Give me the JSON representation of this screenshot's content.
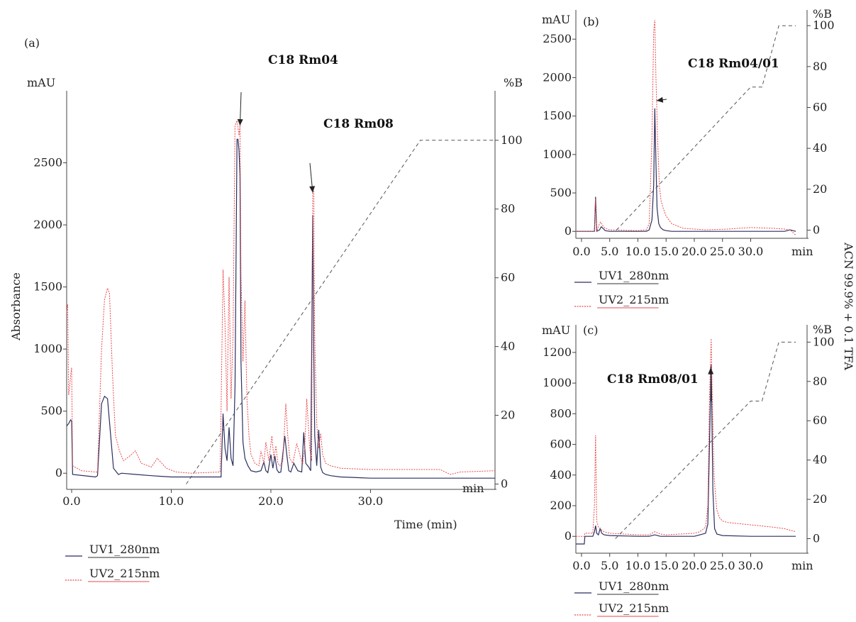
{
  "figure": {
    "right_axis_title": "ACN 99.9% + 0.1 TFA",
    "colors": {
      "uv1": "#2b2f5e",
      "uv2": "#e8494d",
      "gradient": "#555555",
      "axis": "#444444"
    }
  },
  "chart_data": [
    {
      "panel": "a",
      "type": "line",
      "panel_label": "(a)",
      "ylabel": "Absorbance",
      "xlabel": "Time (min)",
      "y_unit": "mAU",
      "y2_unit": "%B",
      "x_unit": "min",
      "xlim": [
        -0.5,
        42.5
      ],
      "ylim": [
        -130,
        3080
      ],
      "y2lim": [
        -1.55,
        114.4
      ],
      "x_ticks": [
        0,
        10,
        20,
        30
      ],
      "x_tick_labels": [
        "0.0",
        "10.0",
        "20.0",
        "30.0"
      ],
      "y_ticks": [
        0,
        500,
        1000,
        1500,
        2000,
        2500
      ],
      "y_tick_labels": [
        "0",
        "500",
        "1000",
        "1500",
        "2000",
        "2500"
      ],
      "y2_ticks": [
        0,
        20,
        40,
        60,
        80,
        100
      ],
      "y2_tick_labels": [
        "0",
        "20",
        "40",
        "60",
        "80",
        "100"
      ],
      "legend": [
        "UV1_280nm",
        "UV2_215nm"
      ],
      "annotations": [
        {
          "text": "C18 Rm04",
          "x": 16.9,
          "y": 2800
        },
        {
          "text": "C18 Rm08",
          "x": 24.2,
          "y": 2260
        }
      ],
      "series": [
        {
          "name": "UV1_280nm",
          "x": [
            -0.5,
            -0.3,
            -0.1,
            0,
            0.1,
            2.4,
            2.6,
            3.0,
            3.3,
            3.6,
            4.2,
            4.5,
            4.7,
            5,
            6.5,
            8,
            9,
            10,
            15,
            15.2,
            15.4,
            15.6,
            15.8,
            16.0,
            16.2,
            16.4,
            16.6,
            16.7,
            16.8,
            16.9,
            17.0,
            17.2,
            17.4,
            17.7,
            18,
            18.5,
            19,
            19.3,
            19.5,
            19.7,
            20,
            20.2,
            20.4,
            20.6,
            20.8,
            21,
            21.4,
            21.6,
            21.8,
            22,
            22.3,
            22.7,
            23.1,
            23.3,
            23.5,
            23.8,
            24,
            24.1,
            24.2,
            24.3,
            24.4,
            24.6,
            24.8,
            25,
            25.2,
            25.5,
            26,
            27,
            30,
            35,
            40,
            42.5
          ],
          "y": [
            380,
            400,
            430,
            420,
            -10,
            -30,
            -20,
            560,
            620,
            600,
            40,
            10,
            -10,
            0,
            -10,
            -20,
            -25,
            -30,
            -30,
            480,
            200,
            100,
            370,
            120,
            60,
            700,
            2690,
            2690,
            2600,
            2400,
            900,
            250,
            120,
            60,
            20,
            10,
            20,
            90,
            20,
            5,
            150,
            40,
            140,
            30,
            5,
            10,
            300,
            150,
            20,
            10,
            80,
            20,
            10,
            330,
            80,
            50,
            20,
            1000,
            2080,
            1000,
            300,
            60,
            350,
            50,
            5,
            -10,
            -20,
            -30,
            -40,
            -40,
            -40,
            -40
          ]
        },
        {
          "name": "UV2_215nm",
          "x": [
            -0.5,
            -0.4,
            -0.3,
            -0.2,
            -0.1,
            0,
            0.1,
            1,
            2.4,
            2.6,
            3.0,
            3.3,
            3.6,
            3.8,
            4.1,
            4.4,
            4.8,
            5.2,
            6,
            6.4,
            7,
            8,
            8.6,
            9.5,
            10.5,
            12,
            14.9,
            15.0,
            15.2,
            15.4,
            15.6,
            15.8,
            16.0,
            16.2,
            16.4,
            16.6,
            16.8,
            16.9,
            17.0,
            17.2,
            17.4,
            17.6,
            17.8,
            18,
            18.4,
            18.8,
            19,
            19.3,
            19.5,
            19.8,
            20.1,
            20.3,
            20.5,
            20.7,
            20.9,
            21.2,
            21.5,
            21.7,
            21.9,
            22.2,
            22.6,
            23,
            23.2,
            23.4,
            23.6,
            23.9,
            24.1,
            24.2,
            24.3,
            24.4,
            24.6,
            24.8,
            25,
            25.2,
            25.5,
            26,
            27,
            30,
            35,
            37,
            38,
            39,
            42.5
          ],
          "y": [
            1300,
            1360,
            630,
            700,
            790,
            850,
            60,
            20,
            10,
            10,
            1000,
            1400,
            1490,
            1450,
            800,
            300,
            180,
            100,
            150,
            180,
            80,
            50,
            120,
            40,
            10,
            0,
            10,
            500,
            1640,
            1200,
            500,
            1580,
            600,
            1100,
            2800,
            2840,
            2720,
            2800,
            1600,
            900,
            1390,
            600,
            300,
            150,
            80,
            60,
            180,
            80,
            250,
            100,
            300,
            120,
            220,
            80,
            60,
            100,
            560,
            300,
            120,
            80,
            240,
            120,
            80,
            200,
            600,
            200,
            100,
            2290,
            2280,
            1100,
            400,
            200,
            320,
            150,
            80,
            60,
            40,
            30,
            30,
            30,
            -10,
            10,
            20
          ]
        },
        {
          "name": "%B",
          "axis": "y2",
          "x": [
            11.5,
            35.0,
            42.5
          ],
          "y": [
            0,
            100,
            100
          ]
        }
      ]
    },
    {
      "panel": "b",
      "type": "line",
      "panel_label": "(b)",
      "y_unit": "mAU",
      "y2_unit": "%B",
      "x_unit": "min",
      "xlim": [
        -1,
        40
      ],
      "ylim": [
        -90,
        2880
      ],
      "y2lim": [
        -4,
        107.7
      ],
      "x_ticks": [
        0,
        5,
        10,
        15,
        20,
        25,
        30
      ],
      "x_tick_labels": [
        "0.0",
        "5.0",
        "10.0",
        "15.0",
        "20.0",
        "25.0",
        "30.0"
      ],
      "y_ticks": [
        0,
        500,
        1000,
        1500,
        2000,
        2500
      ],
      "y_tick_labels": [
        "0",
        "500",
        "1000",
        "1500",
        "2000",
        "2500"
      ],
      "y2_ticks": [
        0,
        20,
        40,
        60,
        80,
        100
      ],
      "y2_tick_labels": [
        "0",
        "20",
        "40",
        "60",
        "80",
        "100"
      ],
      "legend": [
        "UV1_280nm",
        "UV2_215nm"
      ],
      "annotations": [
        {
          "text": "C18 Rm04/01",
          "x": 13.3,
          "y": 1700
        }
      ],
      "series": [
        {
          "name": "UV1_280nm",
          "x": [
            -1,
            2.3,
            2.5,
            2.7,
            3.2,
            3.5,
            3.8,
            4.2,
            5,
            10,
            11.5,
            12,
            12.5,
            12.8,
            13,
            13.2,
            13.4,
            13.7,
            14,
            14.5,
            15,
            16,
            20,
            30,
            36,
            37,
            38
          ],
          "y": [
            0,
            0,
            450,
            0,
            20,
            60,
            40,
            10,
            0,
            0,
            0,
            20,
            150,
            600,
            1600,
            900,
            300,
            100,
            50,
            20,
            10,
            0,
            0,
            0,
            0,
            20,
            0
          ]
        },
        {
          "name": "UV2_215nm",
          "x": [
            -1,
            2.3,
            2.5,
            2.7,
            3.2,
            3.4,
            3.7,
            4.2,
            5,
            10,
            11.5,
            12,
            12.5,
            12.8,
            13,
            13.2,
            13.5,
            13.8,
            14.1,
            14.5,
            15,
            16,
            18,
            22,
            26,
            30,
            34,
            36,
            37,
            38
          ],
          "y": [
            0,
            0,
            420,
            0,
            100,
            120,
            80,
            40,
            20,
            10,
            20,
            100,
            1200,
            2600,
            2750,
            2000,
            1200,
            600,
            400,
            300,
            200,
            100,
            40,
            20,
            30,
            50,
            40,
            30,
            20,
            -50
          ]
        },
        {
          "name": "%B",
          "axis": "y2",
          "x": [
            6.2,
            30,
            32,
            35,
            38
          ],
          "y": [
            0,
            70,
            70,
            100,
            100
          ]
        }
      ]
    },
    {
      "panel": "c",
      "type": "line",
      "panel_label": "(c)",
      "y_unit": "mAU",
      "y2_unit": "%B",
      "x_unit": "min",
      "xlim": [
        -1,
        40
      ],
      "ylim": [
        -110,
        1380
      ],
      "y2lim": [
        -7.4,
        108.8
      ],
      "x_ticks": [
        0,
        5,
        10,
        15,
        20,
        25,
        30
      ],
      "x_tick_labels": [
        "0.0",
        "5.0",
        "10.0",
        "15.0",
        "20.0",
        "25.0",
        "30.0"
      ],
      "y_ticks": [
        0,
        200,
        400,
        600,
        800,
        1000,
        1200
      ],
      "y_tick_labels": [
        "0",
        "200",
        "400",
        "600",
        "800",
        "1000",
        "1200"
      ],
      "y2_ticks": [
        0,
        20,
        40,
        60,
        80,
        100
      ],
      "y2_tick_labels": [
        "0",
        "20",
        "40",
        "60",
        "80",
        "100"
      ],
      "legend": [
        "UV1_280nm",
        "UV2_215nm"
      ],
      "annotations": [
        {
          "text": "C18 Rm08/01",
          "x": 22.9,
          "y": 1100
        }
      ],
      "series": [
        {
          "name": "UV1_280nm",
          "x": [
            -1,
            0.5,
            0.6,
            2,
            2.3,
            2.5,
            2.7,
            3,
            3.3,
            3.6,
            4,
            5,
            10,
            12,
            13,
            14,
            15,
            20,
            21,
            22,
            22.4,
            22.7,
            23,
            23.3,
            23.6,
            24,
            25,
            30,
            35,
            38
          ],
          "y": [
            -50,
            -50,
            0,
            0,
            30,
            70,
            20,
            10,
            50,
            20,
            10,
            5,
            0,
            0,
            10,
            0,
            0,
            0,
            10,
            20,
            80,
            600,
            1120,
            300,
            50,
            15,
            5,
            0,
            0,
            0
          ]
        },
        {
          "name": "UV2_215nm",
          "x": [
            -1,
            0.5,
            0.6,
            2,
            2.3,
            2.5,
            2.7,
            3,
            3.3,
            3.6,
            4,
            5,
            10,
            12,
            13,
            14,
            15,
            20,
            21,
            22,
            22.4,
            22.7,
            23,
            23.2,
            23.5,
            23.8,
            24,
            24.5,
            25,
            26,
            30,
            34,
            36,
            37,
            38
          ],
          "y": [
            0,
            0,
            20,
            20,
            200,
            660,
            100,
            60,
            50,
            40,
            30,
            20,
            10,
            10,
            30,
            15,
            10,
            20,
            30,
            60,
            200,
            900,
            1290,
            900,
            400,
            250,
            170,
            120,
            100,
            90,
            75,
            60,
            50,
            40,
            30
          ]
        },
        {
          "name": "%B",
          "axis": "y2",
          "x": [
            6.0,
            30,
            32,
            35,
            38
          ],
          "y": [
            0,
            70,
            70,
            100,
            100
          ]
        }
      ]
    }
  ]
}
